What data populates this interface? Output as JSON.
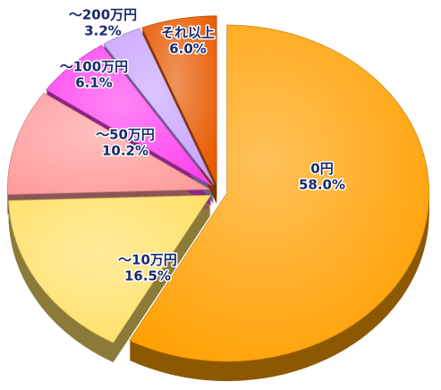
{
  "chart_data": {
    "type": "pie",
    "categories": [
      "0円",
      "～10万円",
      "～50万円",
      "～100万円",
      "～200万円",
      "それ以上"
    ],
    "values": [
      58.0,
      16.5,
      10.2,
      6.1,
      3.2,
      6.0
    ],
    "value_labels": [
      "58.0%",
      "16.5%",
      "10.2%",
      "6.1%",
      "3.2%",
      "6.0%"
    ],
    "colors": [
      "#ffa000",
      "#ffe066",
      "#ff9c9c",
      "#ff44f0",
      "#c9a4ff",
      "#e85a00"
    ]
  }
}
